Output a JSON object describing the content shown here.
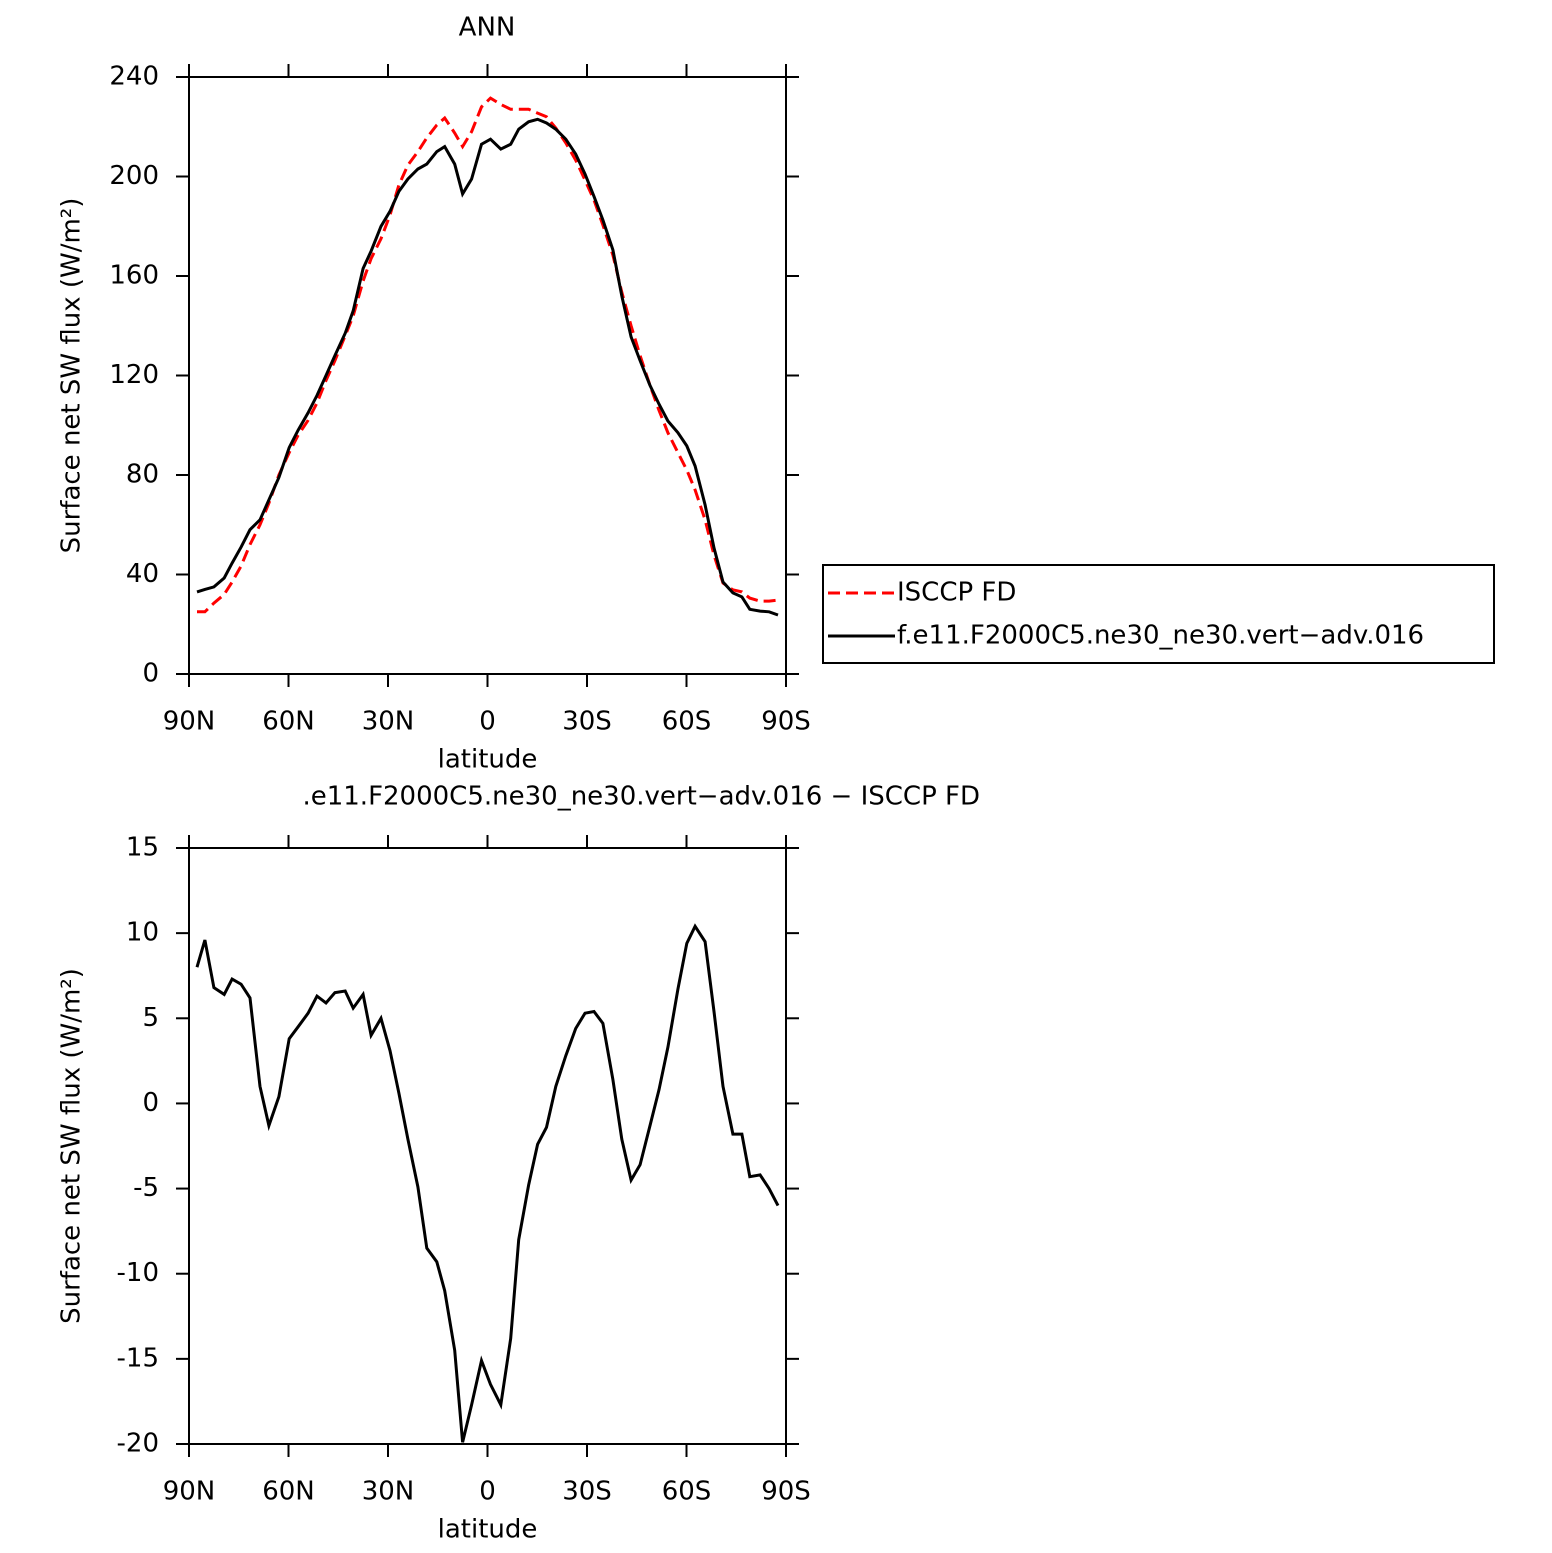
{
  "chart_data": [
    {
      "type": "line",
      "title": "ANN",
      "xlabel": "latitude",
      "ylabel": "Surface net SW flux (W/m²)",
      "x": [
        87.6,
        85.2,
        82.5,
        79.4,
        77.0,
        74.3,
        71.6,
        68.6,
        65.9,
        62.9,
        59.8,
        57.1,
        54.1,
        51.4,
        48.7,
        46.0,
        42.9,
        40.5,
        37.5,
        35.1,
        32.1,
        29.4,
        26.7,
        24.0,
        21.0,
        18.3,
        15.3,
        12.9,
        9.9,
        7.5,
        4.8,
        1.8,
        -0.9,
        -4.0,
        -7.0,
        -9.4,
        -12.4,
        -15.1,
        -17.8,
        -20.6,
        -23.6,
        -26.6,
        -29.4,
        -32.1,
        -34.8,
        -37.8,
        -40.5,
        -43.3,
        -46.0,
        -49.0,
        -51.7,
        -54.4,
        -57.4,
        -60.1,
        -62.6,
        -65.6,
        -68.3,
        -71.0,
        -74.0,
        -76.7,
        -79.1,
        -82.2,
        -84.9,
        -87.6
      ],
      "xlim": [
        90,
        -90
      ],
      "xticks": [
        {
          "value": 90,
          "label": "90N"
        },
        {
          "value": 60,
          "label": "60N"
        },
        {
          "value": 30,
          "label": "30N"
        },
        0,
        {
          "value": -30,
          "label": "30S"
        },
        {
          "value": -60,
          "label": "60S"
        },
        {
          "value": -90,
          "label": "90S"
        }
      ],
      "ylim": [
        0,
        240
      ],
      "yticks": [
        0,
        40,
        80,
        120,
        160,
        200,
        240
      ],
      "legend": "outside right",
      "series": [
        {
          "name": "ISCCP FD",
          "color": "#ff0000",
          "line_style": "dashed",
          "values": [
            25,
            25,
            28.5,
            32,
            37,
            43.4,
            52,
            60,
            68.7,
            80,
            89,
            96,
            102,
            109,
            118,
            126,
            136,
            144,
            158,
            167,
            175,
            184.5,
            196.6,
            204.6,
            210,
            215.5,
            220.7,
            223.5,
            217.5,
            212,
            218,
            228,
            231.5,
            229,
            227,
            227,
            227,
            225.5,
            224,
            219.5,
            213.5,
            206.6,
            198.6,
            190.5,
            180.5,
            168.4,
            153.5,
            140,
            128,
            116,
            106,
            97,
            89,
            82,
            74,
            62,
            47.8,
            36.6,
            33.8,
            33,
            30.5,
            29.3,
            29.3,
            29.7
          ]
        },
        {
          "name": "f.e11.F2000C5.ne30_ne30.vert−adv.016",
          "color": "#000000",
          "line_style": "solid",
          "values": [
            33,
            34,
            35,
            38.6,
            44.6,
            51,
            58,
            62,
            70,
            79,
            91,
            98,
            105,
            112,
            120,
            128,
            137,
            146,
            163,
            170,
            180,
            186,
            194,
            199,
            203,
            205,
            210,
            212,
            205,
            193,
            199,
            213,
            215,
            211,
            213,
            219,
            222,
            223,
            221.5,
            219,
            215,
            209,
            201,
            192,
            182.5,
            170.5,
            152,
            135.5,
            126,
            116,
            108.5,
            101.7,
            97,
            91.7,
            83.6,
            68,
            50.7,
            37,
            32.6,
            31,
            26,
            25.3,
            25,
            23.7
          ]
        }
      ]
    },
    {
      "type": "line",
      "title": ".e11.F2000C5.ne30_ne30.vert−adv.016 − ISCCP FD",
      "xlabel": "latitude",
      "ylabel": "Surface net SW flux (W/m²)",
      "x": [
        87.6,
        85.2,
        82.5,
        79.4,
        77.0,
        74.3,
        71.6,
        68.6,
        65.9,
        62.9,
        59.8,
        57.1,
        54.1,
        51.4,
        48.7,
        46.0,
        42.9,
        40.5,
        37.5,
        35.1,
        32.1,
        29.4,
        26.7,
        24.0,
        21.0,
        18.3,
        15.3,
        12.9,
        9.9,
        7.5,
        4.8,
        1.8,
        -0.9,
        -4.0,
        -7.0,
        -9.4,
        -12.4,
        -15.1,
        -17.8,
        -20.6,
        -23.6,
        -26.6,
        -29.4,
        -32.1,
        -34.8,
        -37.8,
        -40.5,
        -43.3,
        -46.0,
        -49.0,
        -51.7,
        -54.4,
        -57.4,
        -60.1,
        -62.6,
        -65.6,
        -68.3,
        -71.0,
        -74.0,
        -76.7,
        -79.1,
        -82.2,
        -84.9,
        -87.6
      ],
      "xlim": [
        90,
        -90
      ],
      "xticks": [
        {
          "value": 90,
          "label": "90N"
        },
        {
          "value": 60,
          "label": "60N"
        },
        {
          "value": 30,
          "label": "30N"
        },
        0,
        {
          "value": -30,
          "label": "30S"
        },
        {
          "value": -60,
          "label": "60S"
        },
        {
          "value": -90,
          "label": "90S"
        }
      ],
      "ylim": [
        -20,
        15
      ],
      "yticks": [
        -20,
        -15,
        -10,
        -5,
        0,
        5,
        10,
        15
      ],
      "series": [
        {
          "color": "#000000",
          "line_style": "solid",
          "values": [
            8.0,
            9.6,
            6.8,
            6.4,
            7.3,
            7.0,
            6.2,
            1.0,
            -1.3,
            0.4,
            3.8,
            4.5,
            5.3,
            6.3,
            5.9,
            6.5,
            6.6,
            5.6,
            6.4,
            4.0,
            5.0,
            3.1,
            0.6,
            -2.1,
            -4.9,
            -8.5,
            -9.3,
            -11.0,
            -14.5,
            -19.9,
            -17.7,
            -15.1,
            -16.5,
            -17.7,
            -13.8,
            -8.0,
            -4.8,
            -2.4,
            -1.4,
            1.0,
            2.8,
            4.4,
            5.3,
            5.4,
            4.7,
            1.4,
            -2.1,
            -4.5,
            -3.6,
            -1.3,
            0.8,
            3.3,
            6.7,
            9.4,
            10.4,
            9.5,
            5.4,
            1.0,
            -1.8,
            -1.8,
            -4.3,
            -4.2,
            -5.0,
            -6.0
          ]
        }
      ]
    }
  ]
}
